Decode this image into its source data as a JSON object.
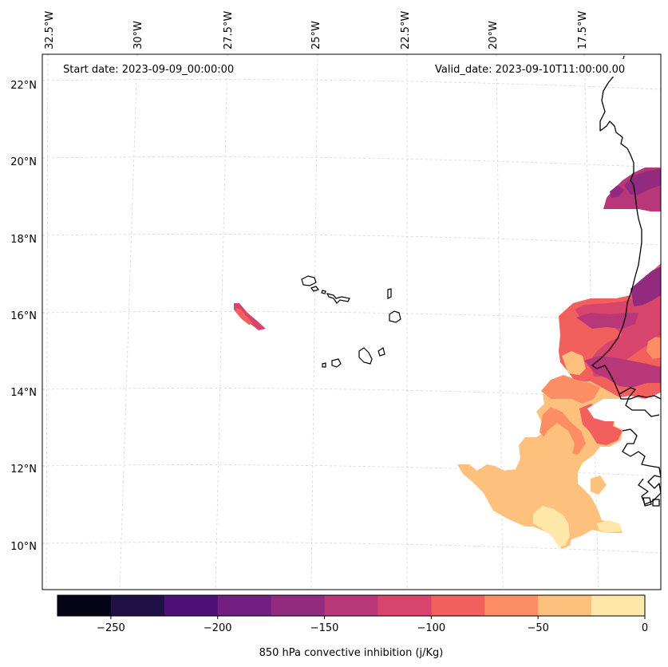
{
  "map": {
    "start_date": "Start date: 2023-09-09_00:00:00",
    "valid_date": "Valid_date: 2023-09-10T11:00:00.00",
    "lon_labels": [
      "32.5°W",
      "30°W",
      "27.5°W",
      "25°W",
      "22.5°W",
      "20°W",
      "17.5°W"
    ],
    "lat_labels": [
      "22°N",
      "20°N",
      "18°N",
      "16°N",
      "14°N",
      "12°N",
      "10°N"
    ],
    "field": "850 hPa convective inhibition",
    "region": "Cabo Verde islands and West African coast (Senegal / Mauritania)"
  },
  "colorbar": {
    "label": "850 hPa convective inhibition (j/Kg)",
    "ticks": [
      "−250",
      "−200",
      "−150",
      "−100",
      "−50",
      "0"
    ],
    "levels": [
      -275,
      -250,
      -225,
      -200,
      -175,
      -150,
      -125,
      -100,
      -75,
      -50,
      -25,
      0
    ],
    "colors": [
      "#050416",
      "#1f1146",
      "#4d0f78",
      "#721f81",
      "#922a80",
      "#b73779",
      "#d8456c",
      "#f1605d",
      "#fd8e63",
      "#fec07d",
      "#fde7a9"
    ]
  }
}
